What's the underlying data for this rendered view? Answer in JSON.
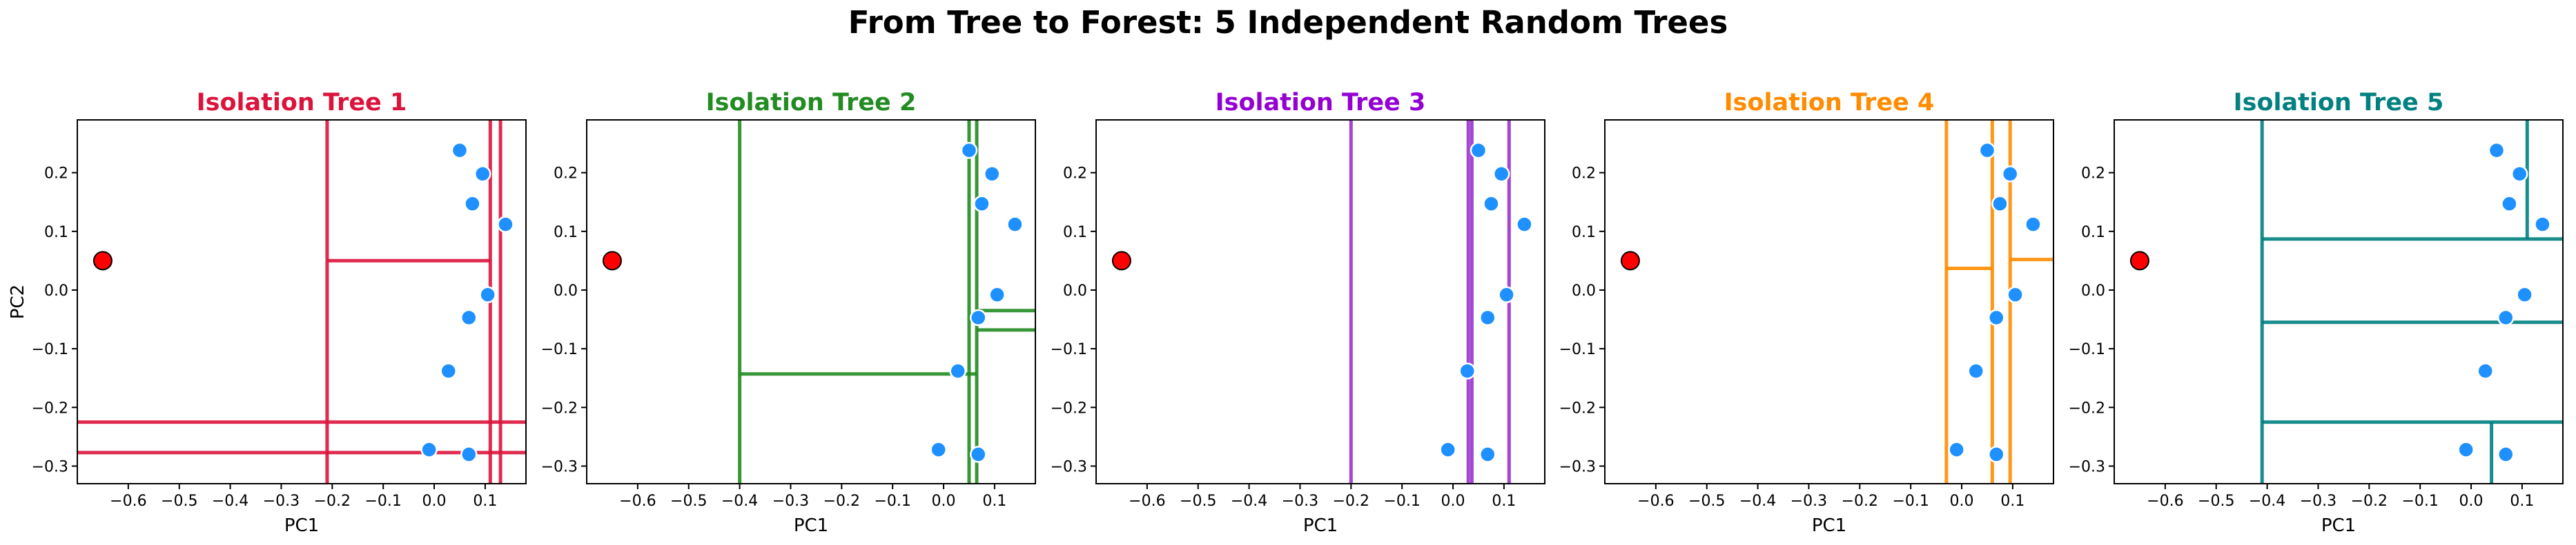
{
  "figure": {
    "title": "From Tree to Forest: 5 Independent Random Trees"
  },
  "chart_data": [
    {
      "type": "scatter",
      "title": "Isolation Tree 1",
      "title_color": "#dc143c",
      "line_color": "#dc143c",
      "xlabel": "PC1",
      "ylabel": "PC2",
      "xlim": [
        -0.7,
        0.18
      ],
      "ylim": [
        -0.33,
        0.29
      ],
      "xticks": [
        -0.6,
        -0.5,
        -0.4,
        -0.3,
        -0.2,
        -0.1,
        0.0,
        0.1
      ],
      "xtick_labels": [
        "−0.6",
        "−0.5",
        "−0.4",
        "−0.3",
        "−0.2",
        "−0.1",
        "0.0",
        "0.1"
      ],
      "yticks": [
        -0.3,
        -0.2,
        -0.1,
        0.0,
        0.1,
        0.2
      ],
      "ytick_labels": [
        "−0.3",
        "−0.2",
        "−0.1",
        "0.0",
        "0.1",
        "0.2"
      ],
      "splits": [
        {
          "orient": "v",
          "at": -0.21,
          "from": -0.33,
          "to": 0.29
        },
        {
          "orient": "v",
          "at": 0.11,
          "from": -0.33,
          "to": 0.29
        },
        {
          "orient": "v",
          "at": 0.13,
          "from": -0.33,
          "to": 0.29
        },
        {
          "orient": "h",
          "at": 0.05,
          "from": -0.21,
          "to": 0.11
        },
        {
          "orient": "h",
          "at": -0.225,
          "from": -0.7,
          "to": 0.18
        },
        {
          "orient": "h",
          "at": -0.277,
          "from": -0.7,
          "to": 0.18
        }
      ]
    },
    {
      "type": "scatter",
      "title": "Isolation Tree 2",
      "title_color": "#228b22",
      "line_color": "#228b22",
      "xlabel": "PC1",
      "ylabel": "",
      "xlim": [
        -0.7,
        0.18
      ],
      "ylim": [
        -0.33,
        0.29
      ],
      "xticks": [
        -0.6,
        -0.5,
        -0.4,
        -0.3,
        -0.2,
        -0.1,
        0.0,
        0.1
      ],
      "xtick_labels": [
        "−0.6",
        "−0.5",
        "−0.4",
        "−0.3",
        "−0.2",
        "−0.1",
        "0.0",
        "0.1"
      ],
      "yticks": [
        -0.3,
        -0.2,
        -0.1,
        0.0,
        0.1,
        0.2
      ],
      "ytick_labels": [
        "−0.3",
        "−0.2",
        "−0.1",
        "0.0",
        "0.1",
        "0.2"
      ],
      "splits": [
        {
          "orient": "v",
          "at": -0.4,
          "from": -0.33,
          "to": 0.29
        },
        {
          "orient": "v",
          "at": 0.05,
          "from": -0.33,
          "to": 0.29
        },
        {
          "orient": "v",
          "at": 0.065,
          "from": -0.33,
          "to": 0.29
        },
        {
          "orient": "h",
          "at": -0.143,
          "from": -0.4,
          "to": 0.065
        },
        {
          "orient": "h",
          "at": -0.035,
          "from": 0.065,
          "to": 0.18
        },
        {
          "orient": "h",
          "at": -0.068,
          "from": 0.065,
          "to": 0.18
        }
      ]
    },
    {
      "type": "scatter",
      "title": "Isolation Tree 3",
      "title_color": "#9400d3",
      "line_color": "#9932cc",
      "xlabel": "PC1",
      "ylabel": "",
      "xlim": [
        -0.7,
        0.18
      ],
      "ylim": [
        -0.33,
        0.29
      ],
      "xticks": [
        -0.6,
        -0.5,
        -0.4,
        -0.3,
        -0.2,
        -0.1,
        0.0,
        0.1
      ],
      "xtick_labels": [
        "−0.6",
        "−0.5",
        "−0.4",
        "−0.3",
        "−0.2",
        "−0.1",
        "0.0",
        "0.1"
      ],
      "yticks": [
        -0.3,
        -0.2,
        -0.1,
        0.0,
        0.1,
        0.2
      ],
      "ytick_labels": [
        "−0.3",
        "−0.2",
        "−0.1",
        "0.0",
        "0.1",
        "0.2"
      ],
      "splits": [
        {
          "orient": "v",
          "at": -0.2,
          "from": -0.33,
          "to": 0.29
        },
        {
          "orient": "v",
          "at": 0.03,
          "from": -0.33,
          "to": 0.29
        },
        {
          "orient": "v",
          "at": 0.037,
          "from": -0.33,
          "to": 0.29
        },
        {
          "orient": "v",
          "at": 0.11,
          "from": -0.33,
          "to": 0.29
        }
      ]
    },
    {
      "type": "scatter",
      "title": "Isolation Tree 4",
      "title_color": "#ff8c00",
      "line_color": "#ff8c00",
      "xlabel": "PC1",
      "ylabel": "",
      "xlim": [
        -0.7,
        0.18
      ],
      "ylim": [
        -0.33,
        0.29
      ],
      "xticks": [
        -0.6,
        -0.5,
        -0.4,
        -0.3,
        -0.2,
        -0.1,
        0.0,
        0.1
      ],
      "xtick_labels": [
        "−0.6",
        "−0.5",
        "−0.4",
        "−0.3",
        "−0.2",
        "−0.1",
        "0.0",
        "0.1"
      ],
      "yticks": [
        -0.3,
        -0.2,
        -0.1,
        0.0,
        0.1,
        0.2
      ],
      "ytick_labels": [
        "−0.3",
        "−0.2",
        "−0.1",
        "0.0",
        "0.1",
        "0.2"
      ],
      "splits": [
        {
          "orient": "v",
          "at": -0.03,
          "from": -0.33,
          "to": 0.29
        },
        {
          "orient": "v",
          "at": 0.06,
          "from": -0.33,
          "to": 0.29
        },
        {
          "orient": "v",
          "at": 0.095,
          "from": -0.33,
          "to": 0.29
        },
        {
          "orient": "h",
          "at": 0.037,
          "from": -0.03,
          "to": 0.06
        },
        {
          "orient": "h",
          "at": 0.052,
          "from": 0.095,
          "to": 0.18
        }
      ]
    },
    {
      "type": "scatter",
      "title": "Isolation Tree 5",
      "title_color": "#008080",
      "line_color": "#008080",
      "xlabel": "PC1",
      "ylabel": "",
      "xlim": [
        -0.7,
        0.18
      ],
      "ylim": [
        -0.33,
        0.29
      ],
      "xticks": [
        -0.6,
        -0.5,
        -0.4,
        -0.3,
        -0.2,
        -0.1,
        0.0,
        0.1
      ],
      "xtick_labels": [
        "−0.6",
        "−0.5",
        "−0.4",
        "−0.3",
        "−0.2",
        "−0.1",
        "0.0",
        "0.1"
      ],
      "yticks": [
        -0.3,
        -0.2,
        -0.1,
        0.0,
        0.1,
        0.2
      ],
      "ytick_labels": [
        "−0.3",
        "−0.2",
        "−0.1",
        "0.0",
        "0.1",
        "0.2"
      ],
      "splits": [
        {
          "orient": "v",
          "at": -0.41,
          "from": -0.33,
          "to": 0.29
        },
        {
          "orient": "h",
          "at": 0.087,
          "from": -0.41,
          "to": 0.18
        },
        {
          "orient": "h",
          "at": -0.055,
          "from": -0.41,
          "to": 0.18
        },
        {
          "orient": "h",
          "at": -0.225,
          "from": -0.41,
          "to": 0.18
        },
        {
          "orient": "v",
          "at": 0.11,
          "from": 0.087,
          "to": 0.29
        },
        {
          "orient": "v",
          "at": 0.04,
          "from": -0.33,
          "to": -0.225
        }
      ]
    }
  ],
  "points": {
    "normal_color": "#1e90ff",
    "anomaly_color": "#ff0000",
    "normal": [
      {
        "x": 0.05,
        "y": 0.238
      },
      {
        "x": 0.095,
        "y": 0.198
      },
      {
        "x": 0.075,
        "y": 0.147
      },
      {
        "x": 0.14,
        "y": 0.112
      },
      {
        "x": 0.105,
        "y": -0.008
      },
      {
        "x": 0.068,
        "y": -0.047
      },
      {
        "x": 0.028,
        "y": -0.138
      },
      {
        "x": -0.01,
        "y": -0.272
      },
      {
        "x": 0.068,
        "y": -0.28
      }
    ],
    "anomaly": [
      {
        "x": -0.65,
        "y": 0.05
      }
    ]
  }
}
